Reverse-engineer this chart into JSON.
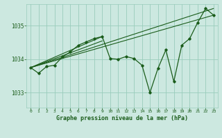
{
  "background_color": "#cce8e0",
  "grid_color": "#99ccbb",
  "line_color": "#1a5c1a",
  "title": "Graphe pression niveau de la mer (hPa)",
  "xmin": -0.5,
  "xmax": 23.5,
  "ymin": 1032.55,
  "ymax": 1035.65,
  "yticks": [
    1033,
    1034,
    1035
  ],
  "xticks": [
    0,
    1,
    2,
    3,
    4,
    5,
    6,
    7,
    8,
    9,
    10,
    11,
    12,
    13,
    14,
    15,
    16,
    17,
    18,
    19,
    20,
    21,
    22,
    23
  ],
  "main_line_x": [
    0,
    1,
    2,
    3,
    4,
    5,
    6,
    7,
    8,
    9,
    10,
    11,
    12,
    13,
    14,
    15,
    16,
    17,
    18,
    19,
    20,
    21,
    22,
    23
  ],
  "main_line_y": [
    1033.75,
    1033.58,
    1033.78,
    1033.82,
    1034.07,
    1034.22,
    1034.42,
    1034.52,
    1034.62,
    1034.68,
    1034.02,
    1034.0,
    1034.08,
    1034.02,
    1033.82,
    1033.0,
    1033.72,
    1034.28,
    1033.33,
    1034.42,
    1034.62,
    1035.1,
    1035.52,
    1035.32
  ],
  "trend_lines": [
    {
      "x": [
        0,
        23
      ],
      "y": [
        1033.75,
        1035.52
      ]
    },
    {
      "x": [
        0,
        23
      ],
      "y": [
        1033.75,
        1035.32
      ]
    },
    {
      "x": [
        0,
        9
      ],
      "y": [
        1033.75,
        1034.68
      ]
    },
    {
      "x": [
        0,
        9
      ],
      "y": [
        1033.75,
        1034.55
      ]
    }
  ]
}
